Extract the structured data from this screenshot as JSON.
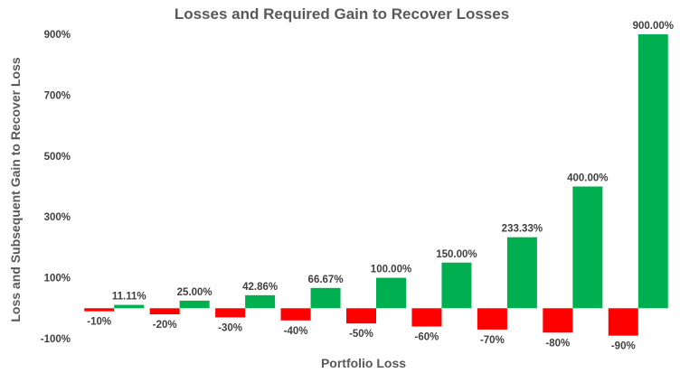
{
  "chart_data": {
    "type": "bar",
    "title": "Losses and Required Gain to Recover Losses",
    "xlabel": "Portfolio Loss",
    "ylabel": "Loss and Subsequent Gain to Recover Loss",
    "categories": [
      "-10%",
      "-20%",
      "-30%",
      "-40%",
      "-50%",
      "-60%",
      "-70%",
      "-80%",
      "-90%"
    ],
    "series": [
      {
        "color": "#ff0000",
        "values": [
          -10,
          -20,
          -30,
          -40,
          -50,
          -60,
          -70,
          -80,
          -90
        ],
        "labels": [
          "-10%",
          "-20%",
          "-30%",
          "-40%",
          "-50%",
          "-60%",
          "-70%",
          "-80%",
          "-90%"
        ]
      },
      {
        "color": "#00b050",
        "values": [
          11.11,
          25.0,
          42.86,
          66.67,
          100.0,
          150.0,
          233.33,
          400.0,
          900.0
        ],
        "labels": [
          "11.11%",
          "25.00%",
          "42.86%",
          "66.67%",
          "100.00%",
          "150.00%",
          "233.33%",
          "400.00%",
          "900.00%"
        ]
      }
    ],
    "yticks": [
      -100,
      100,
      300,
      500,
      700,
      900
    ],
    "ytick_labels": [
      "-100%",
      "100%",
      "300%",
      "500%",
      "700%",
      "900%"
    ],
    "ylim": [
      -100,
      900
    ],
    "grid": false,
    "legend": "none"
  }
}
